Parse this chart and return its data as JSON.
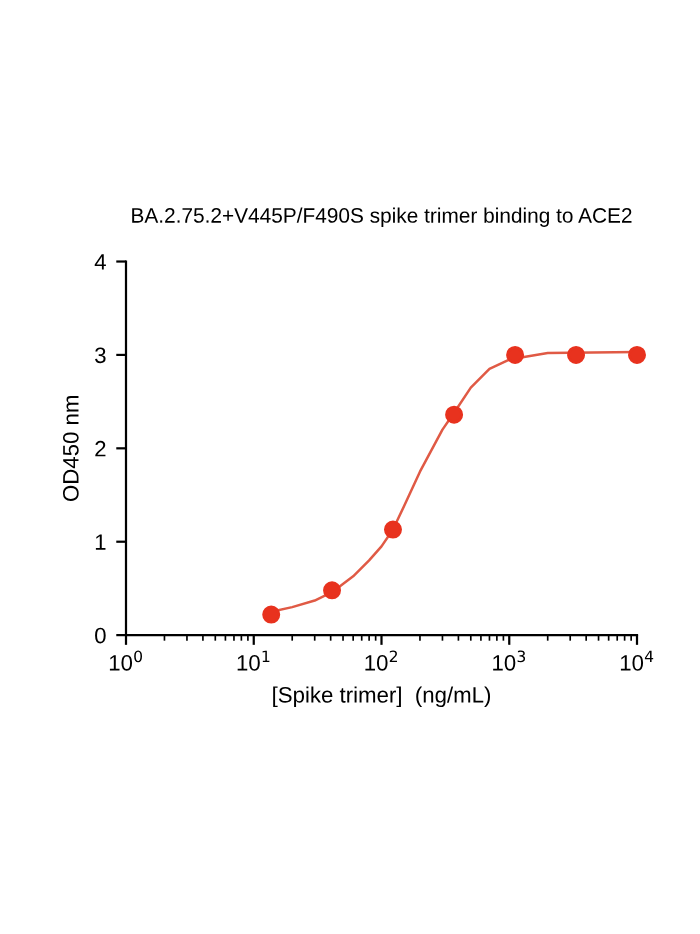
{
  "chart_data": {
    "type": "scatter",
    "title": "BA.2.75.2+V445P/F490S spike trimer binding to ACE2",
    "xlabel": "[Spike trimer]  (ng/mL)",
    "ylabel": "OD450 nm",
    "log": "x",
    "xlim": [
      1,
      10000
    ],
    "xticks": [
      {
        "value": 1,
        "label": "10$^{0}$"
      },
      {
        "value": 10,
        "label": "10$^{1}$"
      },
      {
        "value": 100,
        "label": "10$^{2}$"
      },
      {
        "value": 1000,
        "label": "10$^{3}$"
      },
      {
        "value": 10000,
        "label": "10$^{4}$"
      }
    ],
    "ylim": [
      0,
      4
    ],
    "yticks": [
      0,
      1,
      2,
      3,
      4
    ],
    "grid": false,
    "legend": false,
    "series": [
      {
        "color": "#e8321e",
        "marker": "circle",
        "x": [
          13.7,
          41,
          123,
          370,
          1111,
          3333,
          10000
        ],
        "values": [
          0.22,
          0.48,
          1.13,
          2.36,
          3.0,
          3.0,
          3.0
        ]
      },
      {
        "type": "line",
        "color": "#e05a45",
        "marker": "none",
        "line_style": "solid",
        "x": [
          13.7,
          20,
          30,
          41,
          60,
          80,
          100,
          123,
          150,
          200,
          300,
          370,
          500,
          700,
          1000,
          2000,
          10000
        ],
        "values": [
          0.25,
          0.3,
          0.37,
          0.46,
          0.63,
          0.8,
          0.95,
          1.13,
          1.38,
          1.75,
          2.2,
          2.38,
          2.65,
          2.85,
          2.95,
          3.02,
          3.03
        ]
      }
    ]
  }
}
